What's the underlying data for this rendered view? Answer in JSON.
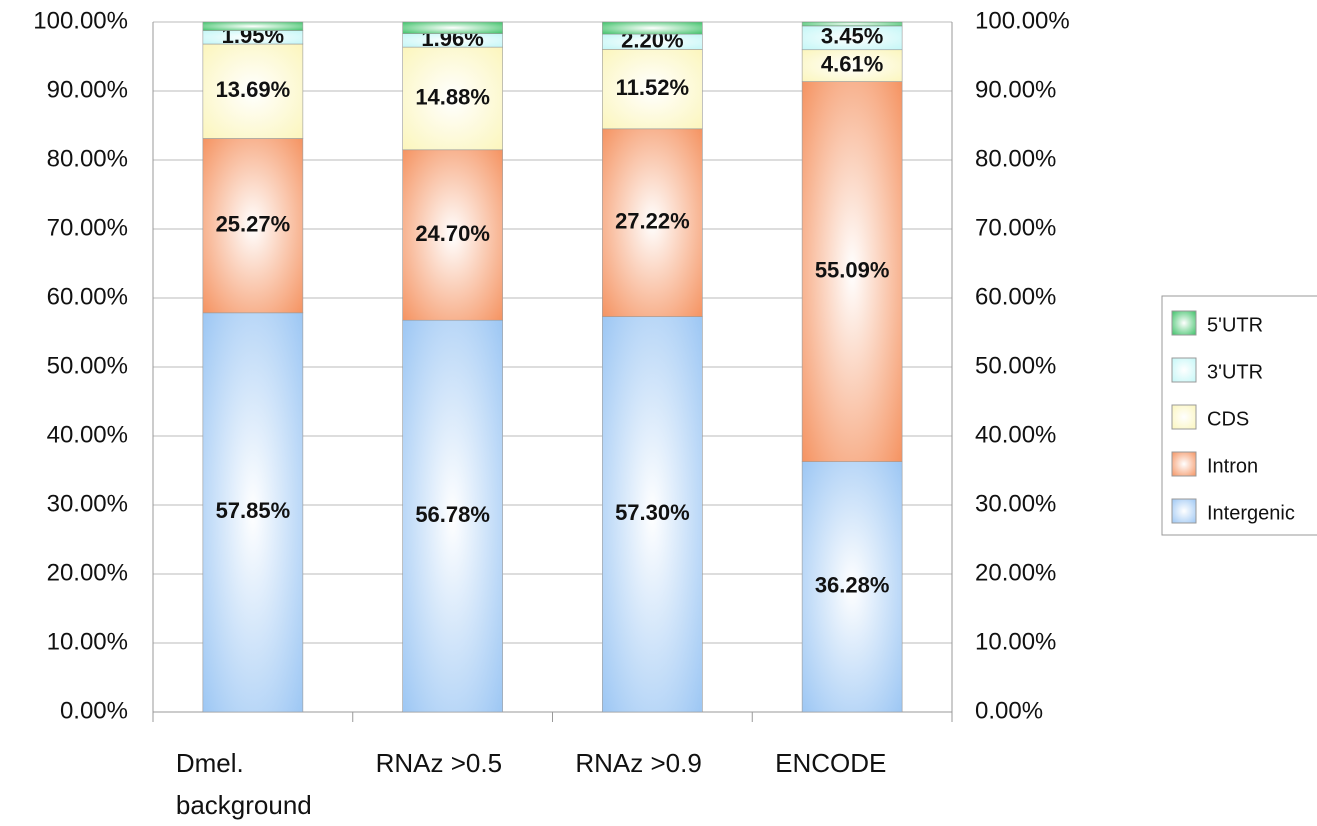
{
  "chart_data": {
    "type": "stacked_bar",
    "categories": [
      "Dmel. background",
      "RNAz >0.5",
      "RNAz >0.9",
      "ENCODE"
    ],
    "series": [
      {
        "name": "Intergenic",
        "color": "#96c3f3",
        "values": [
          57.85,
          56.78,
          57.3,
          36.28
        ],
        "value_labels": [
          "57.85%",
          "56.78%",
          "57.30%",
          "36.28%"
        ]
      },
      {
        "name": "Intron",
        "color": "#f48c57",
        "values": [
          25.27,
          24.7,
          27.22,
          55.09
        ],
        "value_labels": [
          "25.27%",
          "24.70%",
          "27.22%",
          "55.09%"
        ]
      },
      {
        "name": "CDS",
        "color": "#fbf5b8",
        "values": [
          13.69,
          14.88,
          11.52,
          4.61
        ],
        "value_labels": [
          "13.69%",
          "14.88%",
          "11.52%",
          "4.61%"
        ]
      },
      {
        "name": "3'UTR",
        "color": "#bff6f6",
        "values": [
          1.95,
          1.96,
          2.2,
          3.45
        ],
        "value_labels": [
          "1.95%",
          "1.96%",
          "2.20%",
          "3.45%"
        ]
      },
      {
        "name": "5'UTR",
        "color": "#2ebd5c",
        "values": [
          1.24,
          1.68,
          1.76,
          0.57
        ]
      }
    ],
    "ylim": [
      0,
      100
    ],
    "yticks": [
      {
        "value": 0,
        "label": "0.00%"
      },
      {
        "value": 10,
        "label": "10.00%"
      },
      {
        "value": 20,
        "label": "20.00%"
      },
      {
        "value": 30,
        "label": "30.00%"
      },
      {
        "value": 40,
        "label": "40.00%"
      },
      {
        "value": 50,
        "label": "50.00%"
      },
      {
        "value": 60,
        "label": "60.00%"
      },
      {
        "value": 70,
        "label": "70.00%"
      },
      {
        "value": 80,
        "label": "80.00%"
      },
      {
        "value": 90,
        "label": "90.00%"
      },
      {
        "value": 100,
        "label": "100.00%"
      }
    ],
    "grid": true,
    "legend": "right"
  }
}
